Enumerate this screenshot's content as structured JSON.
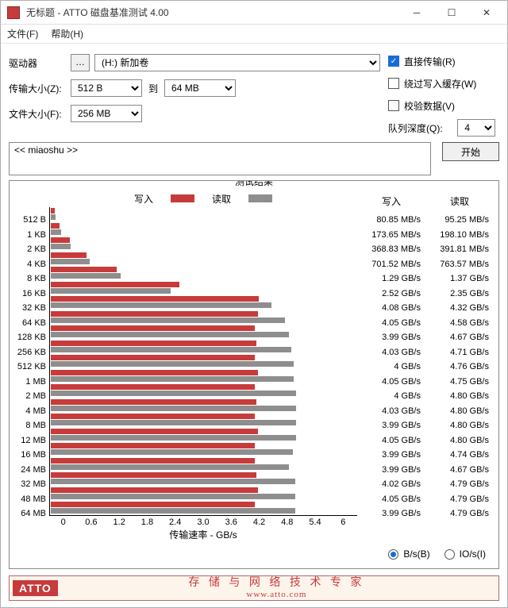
{
  "window": {
    "title": "无标题 - ATTO 磁盘基准测试 4.00"
  },
  "menu": {
    "file": "文件(F)",
    "help": "帮助(H)"
  },
  "options": {
    "drive_label": "驱动器",
    "drive_value": "(H:) 新加卷",
    "transfer_size_label": "传输大小(Z):",
    "transfer_from": "512 B",
    "transfer_to_label": "到",
    "transfer_to": "64 MB",
    "file_size_label": "文件大小(F):",
    "file_size": "256 MB",
    "direct_io": "直接传输(R)",
    "bypass_cache": "绕过写入缓存(W)",
    "verify_data": "校验数据(V)",
    "queue_depth_label": "队列深度(Q):",
    "queue_depth": "4",
    "description": "<< miaoshu >>",
    "start_btn": "开始"
  },
  "results": {
    "title": "测试结果",
    "legend_write": "写入",
    "legend_read": "读取",
    "x_label": "传输速率 - GB/s",
    "x_ticks": [
      "0",
      "0.6",
      "1.2",
      "1.8",
      "2.4",
      "3.0",
      "3.6",
      "4.2",
      "4.8",
      "5.4",
      "6"
    ],
    "write_col_hdr": "写入",
    "read_col_hdr": "读取",
    "max_gbps": 6.0,
    "colors": {
      "write": "#c73b3b",
      "read": "#8e8e8e"
    },
    "rows": [
      {
        "label": "512 B",
        "write_txt": "80.85 MB/s",
        "read_txt": "95.25 MB/s",
        "write_gbps": 0.081,
        "read_gbps": 0.095
      },
      {
        "label": "1 KB",
        "write_txt": "173.65 MB/s",
        "read_txt": "198.10 MB/s",
        "write_gbps": 0.174,
        "read_gbps": 0.198
      },
      {
        "label": "2 KB",
        "write_txt": "368.83 MB/s",
        "read_txt": "391.81 MB/s",
        "write_gbps": 0.369,
        "read_gbps": 0.392
      },
      {
        "label": "4 KB",
        "write_txt": "701.52 MB/s",
        "read_txt": "763.57 MB/s",
        "write_gbps": 0.702,
        "read_gbps": 0.764
      },
      {
        "label": "8 KB",
        "write_txt": "1.29 GB/s",
        "read_txt": "1.37 GB/s",
        "write_gbps": 1.29,
        "read_gbps": 1.37
      },
      {
        "label": "16 KB",
        "write_txt": "2.52 GB/s",
        "read_txt": "2.35 GB/s",
        "write_gbps": 2.52,
        "read_gbps": 2.35
      },
      {
        "label": "32 KB",
        "write_txt": "4.08 GB/s",
        "read_txt": "4.32 GB/s",
        "write_gbps": 4.08,
        "read_gbps": 4.32
      },
      {
        "label": "64 KB",
        "write_txt": "4.05 GB/s",
        "read_txt": "4.58 GB/s",
        "write_gbps": 4.05,
        "read_gbps": 4.58
      },
      {
        "label": "128 KB",
        "write_txt": "3.99 GB/s",
        "read_txt": "4.67 GB/s",
        "write_gbps": 3.99,
        "read_gbps": 4.67
      },
      {
        "label": "256 KB",
        "write_txt": "4.03 GB/s",
        "read_txt": "4.71 GB/s",
        "write_gbps": 4.03,
        "read_gbps": 4.71
      },
      {
        "label": "512 KB",
        "write_txt": "4 GB/s",
        "read_txt": "4.76 GB/s",
        "write_gbps": 4.0,
        "read_gbps": 4.76
      },
      {
        "label": "1 MB",
        "write_txt": "4.05 GB/s",
        "read_txt": "4.75 GB/s",
        "write_gbps": 4.05,
        "read_gbps": 4.75
      },
      {
        "label": "2 MB",
        "write_txt": "4 GB/s",
        "read_txt": "4.80 GB/s",
        "write_gbps": 4.0,
        "read_gbps": 4.8
      },
      {
        "label": "4 MB",
        "write_txt": "4.03 GB/s",
        "read_txt": "4.80 GB/s",
        "write_gbps": 4.03,
        "read_gbps": 4.8
      },
      {
        "label": "8 MB",
        "write_txt": "3.99 GB/s",
        "read_txt": "4.80 GB/s",
        "write_gbps": 3.99,
        "read_gbps": 4.8
      },
      {
        "label": "12 MB",
        "write_txt": "4.05 GB/s",
        "read_txt": "4.80 GB/s",
        "write_gbps": 4.05,
        "read_gbps": 4.8
      },
      {
        "label": "16 MB",
        "write_txt": "3.99 GB/s",
        "read_txt": "4.74 GB/s",
        "write_gbps": 3.99,
        "read_gbps": 4.74
      },
      {
        "label": "24 MB",
        "write_txt": "3.99 GB/s",
        "read_txt": "4.67 GB/s",
        "write_gbps": 3.99,
        "read_gbps": 4.67
      },
      {
        "label": "32 MB",
        "write_txt": "4.02 GB/s",
        "read_txt": "4.79 GB/s",
        "write_gbps": 4.02,
        "read_gbps": 4.79
      },
      {
        "label": "48 MB",
        "write_txt": "4.05 GB/s",
        "read_txt": "4.79 GB/s",
        "write_gbps": 4.05,
        "read_gbps": 4.79
      },
      {
        "label": "64 MB",
        "write_txt": "3.99 GB/s",
        "read_txt": "4.79 GB/s",
        "write_gbps": 3.99,
        "read_gbps": 4.79
      }
    ],
    "unit_bs": "B/s(B)",
    "unit_ios": "IO/s(I)"
  },
  "footer": {
    "logo": "ATTO",
    "tagline": "存 储 与 网 络 技 术 专 家",
    "url": "www.atto.com"
  }
}
